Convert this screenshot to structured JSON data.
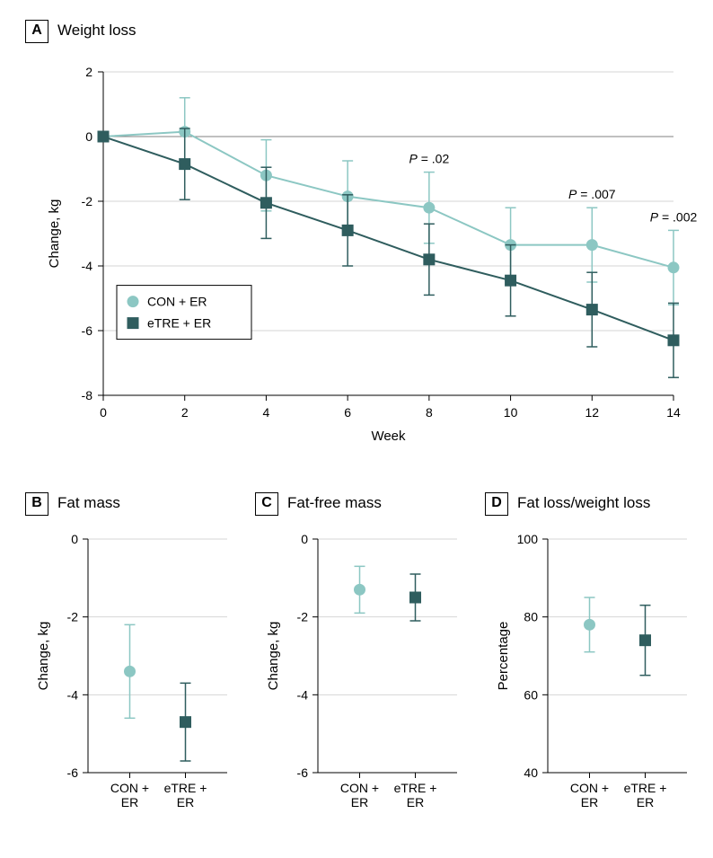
{
  "colors": {
    "con": "#8cc7c3",
    "etre": "#2f5d5e",
    "grid": "#d6d6d6",
    "zero_line": "#808080",
    "axis": "#000000",
    "bg": "#ffffff"
  },
  "legend": {
    "con_label": "CON + ER",
    "etre_label": "eTRE + ER"
  },
  "panelA": {
    "letter": "A",
    "title": "Weight loss",
    "x_label": "Week",
    "y_label": "Change, kg",
    "x_ticks": [
      0,
      2,
      4,
      6,
      8,
      10,
      12,
      14
    ],
    "y_ticks": [
      -8,
      -6,
      -4,
      -2,
      0,
      2
    ],
    "xlim": [
      0,
      14
    ],
    "ylim": [
      -8,
      2
    ],
    "p_values": [
      {
        "x": 8,
        "label": "P = .02"
      },
      {
        "x": 12,
        "label": "P = .007"
      },
      {
        "x": 14,
        "label": "P = .002"
      }
    ],
    "series": {
      "con": {
        "x": [
          0,
          2,
          4,
          6,
          8,
          10,
          12,
          14
        ],
        "y": [
          0.0,
          0.15,
          -1.2,
          -1.85,
          -2.2,
          -3.35,
          -3.35,
          -4.05
        ],
        "err": [
          0.0,
          1.05,
          1.1,
          1.1,
          1.1,
          1.15,
          1.15,
          1.15
        ]
      },
      "etre": {
        "x": [
          0,
          2,
          4,
          6,
          8,
          10,
          12,
          14
        ],
        "y": [
          0.0,
          -0.85,
          -2.05,
          -2.9,
          -3.8,
          -4.45,
          -5.35,
          -6.3
        ],
        "err": [
          0.0,
          1.1,
          1.1,
          1.1,
          1.1,
          1.1,
          1.15,
          1.15
        ]
      }
    }
  },
  "panelB": {
    "letter": "B",
    "title": "Fat mass",
    "y_label": "Change, kg",
    "y_ticks": [
      -6,
      -4,
      -2,
      0
    ],
    "ylim": [
      -6,
      0
    ],
    "categories": [
      "CON +\nER",
      "eTRE +\nER"
    ],
    "points": {
      "con": {
        "y": -3.4,
        "err": 1.2
      },
      "etre": {
        "y": -4.7,
        "err": 1.0
      }
    }
  },
  "panelC": {
    "letter": "C",
    "title": "Fat-free mass",
    "y_label": "Change, kg",
    "y_ticks": [
      -6,
      -4,
      -2,
      0
    ],
    "ylim": [
      -6,
      0
    ],
    "categories": [
      "CON +\nER",
      "eTRE +\nER"
    ],
    "points": {
      "con": {
        "y": -1.3,
        "err": 0.6
      },
      "etre": {
        "y": -1.5,
        "err": 0.6
      }
    }
  },
  "panelD": {
    "letter": "D",
    "title": "Fat loss/weight loss",
    "y_label": "Percentage",
    "y_ticks": [
      40,
      60,
      80,
      100
    ],
    "ylim": [
      40,
      100
    ],
    "categories": [
      "CON +\nER",
      "eTRE +\nER"
    ],
    "points": {
      "con": {
        "y": 78.0,
        "err": 7.0
      },
      "etre": {
        "y": 74.0,
        "err": 9.0
      }
    }
  },
  "style": {
    "marker_radius": 6,
    "marker_square_half": 6,
    "cap_half_width": 6,
    "tick_len": 6,
    "line_width": 2,
    "err_width": 1.5
  }
}
